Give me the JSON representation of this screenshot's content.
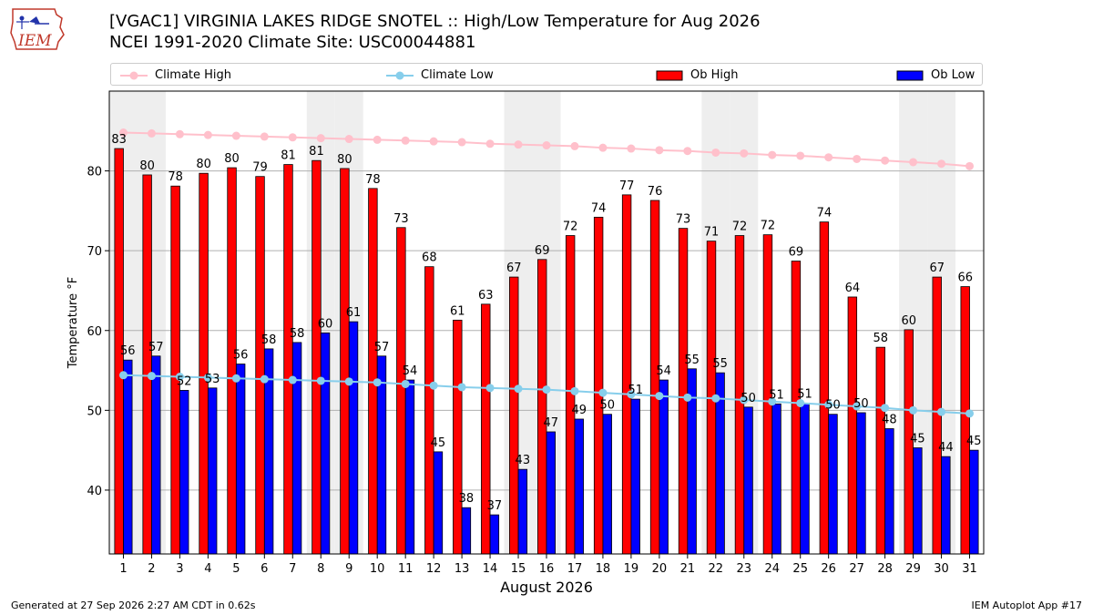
{
  "header": {
    "title_line1": "[VGAC1] VIRGINIA LAKES RIDGE SNOTEL :: High/Low Temperature for Aug 2026",
    "title_line2": "NCEI 1991-2020 Climate Site: USC00044881",
    "logo_text": "IEM"
  },
  "footer": {
    "generated": "Generated at 27 Sep 2026 2:27 AM CDT in 0.62s",
    "app": "IEM Autoplot App #17"
  },
  "colors": {
    "ob_high": "#ff0000",
    "ob_low": "#0000ff",
    "climate_high": "#ffc0cb",
    "climate_low": "#87ceeb",
    "weekend_shade": "#eeeeee",
    "grid": "#b0b0b0"
  },
  "chart_data": {
    "type": "bar",
    "xlabel": "August 2026",
    "ylabel": "Temperature °F",
    "ylim": [
      32,
      90
    ],
    "yticks": [
      40,
      50,
      60,
      70,
      80
    ],
    "grid": "horizontal",
    "legend_position": "top",
    "categories": [
      "1",
      "2",
      "3",
      "4",
      "5",
      "6",
      "7",
      "8",
      "9",
      "10",
      "11",
      "12",
      "13",
      "14",
      "15",
      "16",
      "17",
      "18",
      "19",
      "20",
      "21",
      "22",
      "23",
      "24",
      "25",
      "26",
      "27",
      "28",
      "29",
      "30",
      "31"
    ],
    "shaded_days": [
      1,
      2,
      8,
      9,
      15,
      16,
      22,
      23,
      29,
      30
    ],
    "series": [
      {
        "name": "Ob High",
        "kind": "bar",
        "values": [
          83,
          80,
          78,
          80,
          80,
          79,
          81,
          81,
          80,
          78,
          73,
          68,
          61,
          63,
          67,
          69,
          72,
          74,
          77,
          76,
          73,
          71,
          72,
          72,
          69,
          74,
          64,
          58,
          60,
          67,
          66
        ],
        "exact": [
          82.8,
          79.5,
          78.1,
          79.7,
          80.4,
          79.3,
          80.8,
          81.3,
          80.3,
          77.8,
          72.9,
          68.0,
          61.3,
          63.3,
          66.7,
          68.9,
          71.9,
          74.2,
          77.0,
          76.3,
          72.8,
          71.2,
          71.9,
          72.0,
          68.7,
          73.6,
          64.2,
          57.9,
          60.1,
          66.7,
          65.5
        ]
      },
      {
        "name": "Ob Low",
        "kind": "bar",
        "values": [
          56,
          57,
          52,
          53,
          56,
          58,
          58,
          60,
          61,
          57,
          54,
          45,
          38,
          37,
          43,
          47,
          49,
          50,
          51,
          54,
          55,
          55,
          50,
          51,
          51,
          50,
          50,
          48,
          45,
          44,
          45
        ],
        "exact": [
          56.3,
          56.8,
          52.5,
          52.8,
          55.8,
          57.7,
          58.5,
          59.7,
          61.1,
          56.8,
          53.8,
          44.8,
          37.8,
          36.9,
          42.6,
          47.3,
          48.9,
          49.5,
          51.4,
          53.8,
          55.2,
          54.7,
          50.4,
          50.8,
          50.9,
          49.5,
          49.7,
          47.7,
          45.3,
          44.2,
          45.0
        ]
      },
      {
        "name": "Climate High",
        "kind": "line",
        "values": [
          84.8,
          84.7,
          84.6,
          84.5,
          84.4,
          84.3,
          84.2,
          84.1,
          84.0,
          83.9,
          83.8,
          83.7,
          83.6,
          83.4,
          83.3,
          83.2,
          83.1,
          82.9,
          82.8,
          82.6,
          82.5,
          82.3,
          82.2,
          82.0,
          81.9,
          81.7,
          81.5,
          81.3,
          81.1,
          80.9,
          80.6
        ]
      },
      {
        "name": "Climate Low",
        "kind": "line",
        "values": [
          54.4,
          54.3,
          54.2,
          54.1,
          54.0,
          53.9,
          53.8,
          53.7,
          53.6,
          53.5,
          53.3,
          53.1,
          52.9,
          52.8,
          52.7,
          52.6,
          52.4,
          52.2,
          52.0,
          51.8,
          51.6,
          51.5,
          51.3,
          51.1,
          50.9,
          50.7,
          50.5,
          50.3,
          50.0,
          49.8,
          49.6
        ]
      }
    ]
  }
}
